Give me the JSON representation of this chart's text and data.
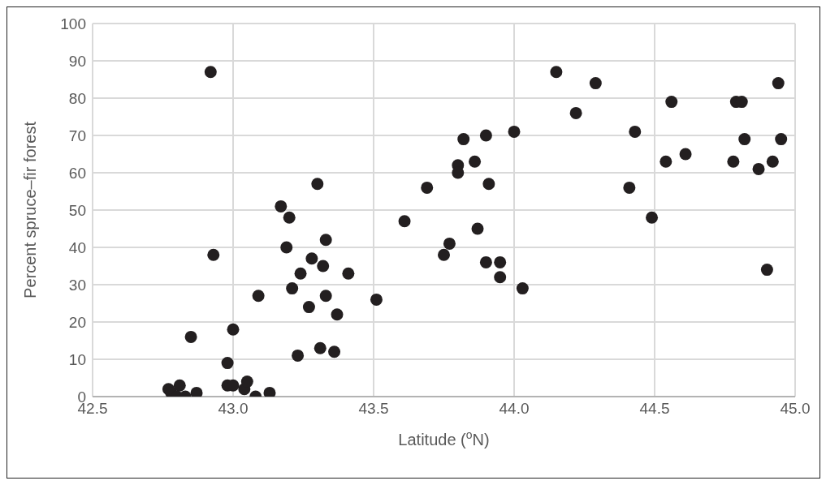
{
  "chart_data": {
    "type": "scatter",
    "xlabel": "Latitude ($^{o}$N)",
    "ylabel": "Percent spruce–fir forest",
    "x": [
      42.77,
      42.78,
      42.81,
      42.8,
      42.83,
      42.87,
      42.85,
      42.92,
      42.93,
      42.98,
      42.98,
      43.0,
      43.0,
      43.04,
      43.05,
      43.08,
      43.09,
      43.13,
      43.17,
      43.2,
      43.19,
      43.21,
      43.24,
      43.23,
      43.28,
      43.27,
      43.3,
      43.32,
      43.33,
      43.33,
      43.31,
      43.36,
      43.37,
      43.41,
      43.51,
      43.61,
      43.69,
      43.75,
      43.77,
      43.8,
      43.8,
      43.82,
      43.86,
      43.87,
      43.9,
      43.91,
      43.9,
      43.95,
      43.95,
      44.0,
      44.03,
      44.15,
      44.22,
      44.29,
      44.41,
      44.43,
      44.49,
      44.54,
      44.56,
      44.61,
      44.78,
      44.79,
      44.81,
      44.82,
      44.87,
      44.9,
      44.92,
      44.94,
      44.95
    ],
    "values": [
      2,
      1,
      3,
      0,
      0,
      1,
      16,
      87,
      38,
      9,
      3,
      3,
      18,
      2,
      4,
      0,
      27,
      1,
      51,
      48,
      40,
      29,
      33,
      11,
      37,
      24,
      57,
      35,
      42,
      27,
      13,
      12,
      22,
      33,
      26,
      47,
      56,
      38,
      41,
      62,
      60,
      69,
      63,
      45,
      70,
      57,
      36,
      36,
      32,
      71,
      29,
      87,
      76,
      84,
      56,
      71,
      48,
      63,
      79,
      65,
      63,
      79,
      79,
      69,
      61,
      34,
      63,
      84,
      69
    ],
    "color": "#231f20",
    "marker": "circle",
    "xlim": [
      42.5,
      45.0
    ],
    "xticks": [
      {
        "value": 42.5,
        "label": "42.5"
      },
      {
        "value": 43.0,
        "label": "43.0"
      },
      {
        "value": 43.5,
        "label": "43.5"
      },
      {
        "value": 44.0,
        "label": "44.0"
      },
      {
        "value": 44.5,
        "label": "44.5"
      },
      {
        "value": 45.0,
        "label": "45.0"
      }
    ],
    "ylim": [
      0,
      100
    ],
    "yticks": [
      0,
      10,
      20,
      30,
      40,
      50,
      60,
      70,
      80,
      90,
      100
    ],
    "grid": true
  }
}
